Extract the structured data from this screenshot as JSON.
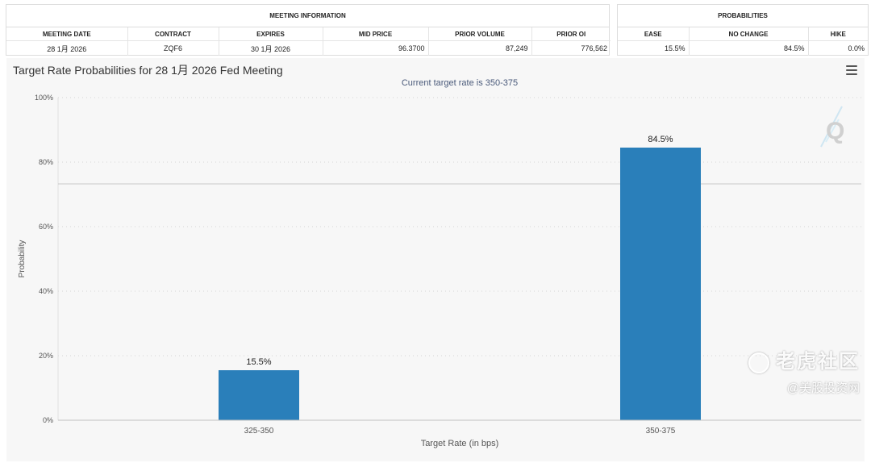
{
  "meeting_info": {
    "title": "MEETING INFORMATION",
    "headers": [
      "MEETING DATE",
      "CONTRACT",
      "EXPIRES",
      "MID PRICE",
      "PRIOR VOLUME",
      "PRIOR OI"
    ],
    "row": [
      "28 1月 2026",
      "ZQF6",
      "30 1月 2026",
      "96.3700",
      "87,249",
      "776,562"
    ]
  },
  "probabilities": {
    "title": "PROBABILITIES",
    "headers": [
      "EASE",
      "NO CHANGE",
      "HIKE"
    ],
    "row": [
      "15.5%",
      "84.5%",
      "0.0%"
    ]
  },
  "chart_data": {
    "type": "bar",
    "title": "Target Rate Probabilities for 28 1月 2026 Fed Meeting",
    "subtitle": "Current target rate is 350-375",
    "xlabel": "Target Rate (in bps)",
    "ylabel": "Probability",
    "categories": [
      "325-350",
      "350-375"
    ],
    "values": [
      15.5,
      84.5
    ],
    "data_labels": [
      "15.5%",
      "84.5%"
    ],
    "ylim": [
      0,
      100
    ],
    "yticks": [
      0,
      20,
      40,
      60,
      80,
      100
    ],
    "ytick_labels": [
      "0%",
      "20%",
      "40%",
      "60%",
      "80%",
      "100%"
    ],
    "grid": true,
    "bar_color": "#2a7fba"
  },
  "watermark": {
    "line1": "老虎社区",
    "line2": "@美股投资网"
  }
}
